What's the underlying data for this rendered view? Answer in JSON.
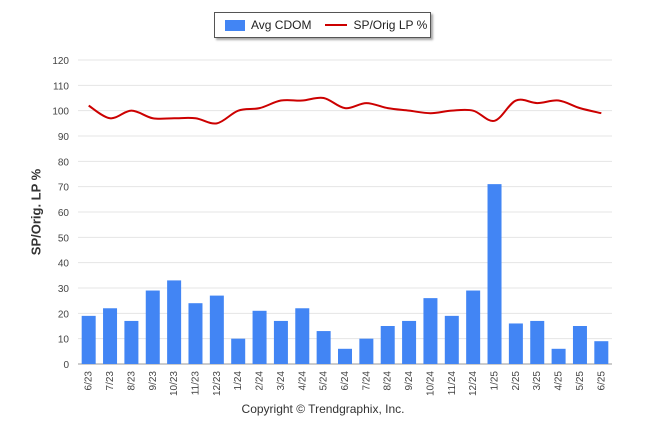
{
  "chart_data": {
    "type": "bar",
    "title": "",
    "xlabel": "",
    "ylabel": "SP/Orig. LP %",
    "ylim": [
      0,
      120
    ],
    "yticks": [
      0,
      10,
      20,
      30,
      40,
      50,
      60,
      70,
      80,
      90,
      100,
      110,
      120
    ],
    "grid": true,
    "legend": "top-center",
    "categories": [
      "6/23",
      "7/23",
      "8/23",
      "9/23",
      "10/23",
      "11/23",
      "12/23",
      "1/24",
      "2/24",
      "3/24",
      "4/24",
      "5/24",
      "6/24",
      "7/24",
      "8/24",
      "9/24",
      "10/24",
      "11/24",
      "12/24",
      "1/25",
      "2/25",
      "3/25",
      "4/25",
      "5/25",
      "6/25"
    ],
    "series": [
      {
        "name": "Avg CDOM",
        "type": "bar",
        "color": "#4285f4",
        "values": [
          19,
          22,
          17,
          29,
          33,
          24,
          27,
          10,
          21,
          17,
          22,
          13,
          6,
          10,
          15,
          17,
          26,
          19,
          29,
          71,
          16,
          17,
          6,
          15,
          9
        ]
      },
      {
        "name": "SP/Orig LP %",
        "type": "line",
        "color": "#cc0000",
        "values": [
          102,
          97,
          100,
          97,
          97,
          97,
          95,
          100,
          101,
          104,
          104,
          105,
          101,
          103,
          101,
          100,
          99,
          100,
          100,
          96,
          104,
          103,
          104,
          101,
          99
        ]
      }
    ]
  },
  "footer": "Copyright © Trendgraphix, Inc."
}
